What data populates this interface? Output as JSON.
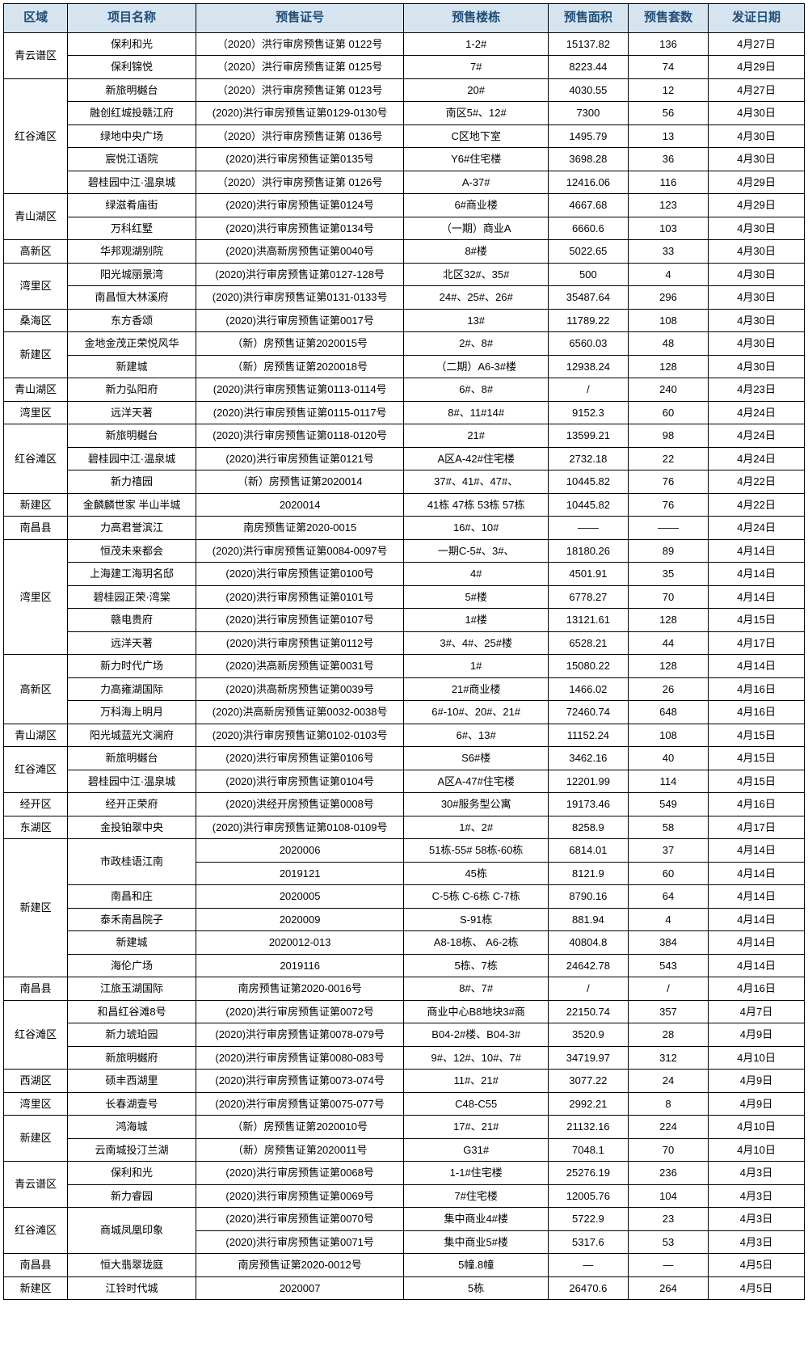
{
  "style": {
    "header_bg": "#d6e4f0",
    "header_fg": "#1f4e79",
    "border_color": "#000000",
    "font_family": "Microsoft YaHei",
    "header_fontsize_pt": 15,
    "body_fontsize_pt": 13
  },
  "columns": [
    "区域",
    "项目名称",
    "预售证号",
    "预售楼栋",
    "预售面积",
    "预售套数",
    "发证日期"
  ],
  "column_widths_pct": [
    8,
    16,
    26,
    18,
    10,
    10,
    12
  ],
  "rows": [
    {
      "region": "青云谱区",
      "project": "保利和光",
      "cert": "（2020）洪行审房预售证第 0122号",
      "building": "1-2#",
      "area": "15137.82",
      "units": "136",
      "date": "4月27日"
    },
    {
      "region": "",
      "project": "保利锦悦",
      "cert": "（2020）洪行审房预售证第 0125号",
      "building": "7#",
      "area": "8223.44",
      "units": "74",
      "date": "4月29日"
    },
    {
      "region": "红谷滩区",
      "project": "新旅明樾台",
      "cert": "（2020）洪行审房预售证第 0123号",
      "building": "20#",
      "area": "4030.55",
      "units": "12",
      "date": "4月27日"
    },
    {
      "region": "",
      "project": "融创红城投赣江府",
      "cert": "(2020)洪行审房预售证第0129-0130号",
      "building": "南区5#、12#",
      "area": "7300",
      "units": "56",
      "date": "4月30日"
    },
    {
      "region": "",
      "project": "绿地中央广场",
      "cert": "（2020）洪行审房预售证第 0136号",
      "building": "C区地下室",
      "area": "1495.79",
      "units": "13",
      "date": "4月30日"
    },
    {
      "region": "",
      "project": "宸悦江语院",
      "cert": "(2020)洪行审房预售证第0135号",
      "building": "Y6#住宅楼",
      "area": "3698.28",
      "units": "36",
      "date": "4月30日"
    },
    {
      "region": "",
      "project": "碧桂园中江·温泉城",
      "cert": "（2020）洪行审房预售证第 0126号",
      "building": "A-37#",
      "area": "12416.06",
      "units": "116",
      "date": "4月29日"
    },
    {
      "region": "青山湖区",
      "project": "绿滋肴庙街",
      "cert": "(2020)洪行审房预售证第0124号",
      "building": "6#商业楼",
      "area": "4667.68",
      "units": "123",
      "date": "4月29日"
    },
    {
      "region": "",
      "project": "万科红墅",
      "cert": "(2020)洪行审房预售证第0134号",
      "building": "（一期）商业A",
      "area": "6660.6",
      "units": "103",
      "date": "4月30日"
    },
    {
      "region": "高新区",
      "project": "华邦观湖别院",
      "cert": "(2020)洪高新房预售证第0040号",
      "building": "8#楼",
      "area": "5022.65",
      "units": "33",
      "date": "4月30日"
    },
    {
      "region": "湾里区",
      "project": "阳光城丽景湾",
      "cert": "(2020)洪行审房预售证第0127-128号",
      "building": "北区32#、35#",
      "area": "500",
      "units": "4",
      "date": "4月30日"
    },
    {
      "region": "",
      "project": "南昌恒大林溪府",
      "cert": "(2020)洪行审房预售证第0131-0133号",
      "building": "24#、25#、26#",
      "area": "35487.64",
      "units": "296",
      "date": "4月30日"
    },
    {
      "region": "桑海区",
      "project": "东方香颂",
      "cert": "(2020)洪行审房预售证第0017号",
      "building": "13#",
      "area": "11789.22",
      "units": "108",
      "date": "4月30日"
    },
    {
      "region": "新建区",
      "project": "金地金茂正荣悦风华",
      "cert": "（新）房预售证第2020015号",
      "building": "2#、8#",
      "area": "6560.03",
      "units": "48",
      "date": "4月30日"
    },
    {
      "region": "",
      "project": "新建城",
      "cert": "（新）房预售证第2020018号",
      "building": "（二期）A6-3#楼",
      "area": "12938.24",
      "units": "128",
      "date": "4月30日"
    },
    {
      "region": "青山湖区",
      "project": "新力弘阳府",
      "cert": "(2020)洪行审房预售证第0113-0114号",
      "building": "6#、8#",
      "area": "/",
      "units": "240",
      "date": "4月23日"
    },
    {
      "region": "湾里区",
      "project": "远洋天著",
      "cert": "(2020)洪行审房预售证第0115-0117号",
      "building": "8#、11#14#",
      "area": "9152.3",
      "units": "60",
      "date": "4月24日"
    },
    {
      "region": "红谷滩区",
      "project": "新旅明樾台",
      "cert": "(2020)洪行审房预售证第0118-0120号",
      "building": "21#",
      "area": "13599.21",
      "units": "98",
      "date": "4月24日"
    },
    {
      "region": "",
      "project": "碧桂园中江·温泉城",
      "cert": "(2020)洪行审房预售证第0121号",
      "building": "A区A-42#住宅楼",
      "area": "2732.18",
      "units": "22",
      "date": "4月24日"
    },
    {
      "region": "",
      "project": "新力禧园",
      "cert": "（新）房预售证第2020014",
      "building": "37#、41#、47#、",
      "area": "10445.82",
      "units": "76",
      "date": "4月22日"
    },
    {
      "region": "新建区",
      "project": "金麟麟世家 半山半城",
      "cert": "2020014",
      "building": "41栋 47栋 53栋 57栋",
      "area": "10445.82",
      "units": "76",
      "date": "4月22日"
    },
    {
      "region": "南昌县",
      "project": "力高君誉滨江",
      "cert": "南房预售证第2020-0015",
      "building": "16#、10#",
      "area": "——",
      "units": "——",
      "date": "4月24日"
    },
    {
      "region": "湾里区",
      "project": "恒茂未来都会",
      "cert": "(2020)洪行审房预售证第0084-0097号",
      "building": "一期C-5#、3#、",
      "area": "18180.26",
      "units": "89",
      "date": "4月14日"
    },
    {
      "region": "",
      "project": "上海建工海玥名邸",
      "cert": "(2020)洪行审房预售证第0100号",
      "building": "4#",
      "area": "4501.91",
      "units": "35",
      "date": "4月14日"
    },
    {
      "region": "",
      "project": "碧桂园正荣·湾棠",
      "cert": "(2020)洪行审房预售证第0101号",
      "building": "5#楼",
      "area": "6778.27",
      "units": "70",
      "date": "4月14日"
    },
    {
      "region": "",
      "project": "赣电贵府",
      "cert": "(2020)洪行审房预售证第0107号",
      "building": "1#楼",
      "area": "13121.61",
      "units": "128",
      "date": "4月15日"
    },
    {
      "region": "",
      "project": "远洋天著",
      "cert": "(2020)洪行审房预售证第0112号",
      "building": "3#、4#、25#楼",
      "area": "6528.21",
      "units": "44",
      "date": "4月17日"
    },
    {
      "region": "高新区",
      "project": "新力时代广场",
      "cert": "(2020)洪高新房预售证第0031号",
      "building": "1#",
      "area": "15080.22",
      "units": "128",
      "date": "4月14日"
    },
    {
      "region": "",
      "project": "力高雍湖国际",
      "cert": "(2020)洪高新房预售证第0039号",
      "building": "21#商业楼",
      "area": "1466.02",
      "units": "26",
      "date": "4月16日"
    },
    {
      "region": "",
      "project": "万科海上明月",
      "cert": "(2020)洪高新房预售证第0032-0038号",
      "building": "6#-10#、20#、21#",
      "area": "72460.74",
      "units": "648",
      "date": "4月16日"
    },
    {
      "region": "青山湖区",
      "project": "阳光城蓝光文澜府",
      "cert": "(2020)洪行审房预售证第0102-0103号",
      "building": "6#、13#",
      "area": "11152.24",
      "units": "108",
      "date": "4月15日"
    },
    {
      "region": "红谷滩区",
      "project": "新旅明樾台",
      "cert": "(2020)洪行审房预售证第0106号",
      "building": "S6#楼",
      "area": "3462.16",
      "units": "40",
      "date": "4月15日"
    },
    {
      "region": "",
      "project": "碧桂园中江·温泉城",
      "cert": "(2020)洪行审房预售证第0104号",
      "building": "A区A-47#住宅楼",
      "area": "12201.99",
      "units": "114",
      "date": "4月15日"
    },
    {
      "region": "经开区",
      "project": "经开正荣府",
      "cert": "(2020)洪经开房预售证第0008号",
      "building": "30#服务型公寓",
      "area": "19173.46",
      "units": "549",
      "date": "4月16日"
    },
    {
      "region": "东湖区",
      "project": "金投铂翠中央",
      "cert": "(2020)洪行审房预售证第0108-0109号",
      "building": "1#、2#",
      "area": "8258.9",
      "units": "58",
      "date": "4月17日"
    },
    {
      "region": "新建区",
      "project": "市政桂语江南",
      "cert": "2020006",
      "building": "51栋-55# 58栋-60栋",
      "area": "6814.01",
      "units": "37",
      "date": "4月14日"
    },
    {
      "region": "",
      "project": "",
      "cert": "2019121",
      "building": "45栋",
      "area": "8121.9",
      "units": "60",
      "date": "4月14日"
    },
    {
      "region": "",
      "project": "南昌和庄",
      "cert": "2020005",
      "building": "C-5栋 C-6栋 C-7栋",
      "area": "8790.16",
      "units": "64",
      "date": "4月14日"
    },
    {
      "region": "",
      "project": "泰禾南昌院子",
      "cert": "2020009",
      "building": "S-91栋",
      "area": "881.94",
      "units": "4",
      "date": "4月14日"
    },
    {
      "region": "",
      "project": "新建城",
      "cert": "2020012-013",
      "building": "A8-18栋、 A6-2栋",
      "area": "40804.8",
      "units": "384",
      "date": "4月14日"
    },
    {
      "region": "",
      "project": "海伦广场",
      "cert": "2019116",
      "building": "5栋、7栋",
      "area": "24642.78",
      "units": "543",
      "date": "4月14日"
    },
    {
      "region": "南昌县",
      "project": "江旅玉湖国际",
      "cert": "南房预售证第2020-0016号",
      "building": "8#、7#",
      "area": "/",
      "units": "/",
      "date": "4月16日"
    },
    {
      "region": "红谷滩区",
      "project": "和昌红谷滩8号",
      "cert": "(2020)洪行审房预售证第0072号",
      "building": "商业中心B8地块3#商",
      "area": "22150.74",
      "units": "357",
      "date": "4月7日"
    },
    {
      "region": "",
      "project": "新力琥珀园",
      "cert": "(2020)洪行审房预售证第0078-079号",
      "building": "B04-2#楼、B04-3#",
      "area": "3520.9",
      "units": "28",
      "date": "4月9日"
    },
    {
      "region": "",
      "project": "新旅明樾府",
      "cert": "(2020)洪行审房预售证第0080-083号",
      "building": "9#、12#、10#、7#",
      "area": "34719.97",
      "units": "312",
      "date": "4月10日"
    },
    {
      "region": "西湖区",
      "project": "硕丰西湖里",
      "cert": "(2020)洪行审房预售证第0073-074号",
      "building": "11#、21#",
      "area": "3077.22",
      "units": "24",
      "date": "4月9日"
    },
    {
      "region": "湾里区",
      "project": "长春湖壹号",
      "cert": "(2020)洪行审房预售证第0075-077号",
      "building": "C48-C55",
      "area": "2992.21",
      "units": "8",
      "date": "4月9日"
    },
    {
      "region": "新建区",
      "project": "鸿海城",
      "cert": "（新）房预售证第2020010号",
      "building": "17#、21#",
      "area": "21132.16",
      "units": "224",
      "date": "4月10日"
    },
    {
      "region": "",
      "project": "云南城投汀兰湖",
      "cert": "（新）房预售证第2020011号",
      "building": "G31#",
      "area": "7048.1",
      "units": "70",
      "date": "4月10日"
    },
    {
      "region": "青云谱区",
      "project": "保利和光",
      "cert": "(2020)洪行审房预售证第0068号",
      "building": "1-1#住宅楼",
      "area": "25276.19",
      "units": "236",
      "date": "4月3日"
    },
    {
      "region": "",
      "project": "新力睿园",
      "cert": "(2020)洪行审房预售证第0069号",
      "building": "7#住宅楼",
      "area": "12005.76",
      "units": "104",
      "date": "4月3日"
    },
    {
      "region": "红谷滩区",
      "project": "商城凤凰印象",
      "cert": "(2020)洪行审房预售证第0070号",
      "building": "集中商业4#楼",
      "area": "5722.9",
      "units": "23",
      "date": "4月3日"
    },
    {
      "region": "",
      "project": "",
      "cert": "(2020)洪行审房预售证第0071号",
      "building": "集中商业5#楼",
      "area": "5317.6",
      "units": "53",
      "date": "4月3日"
    },
    {
      "region": "南昌县",
      "project": "恒大翡翠珑庭",
      "cert": "南房预售证第2020-0012号",
      "building": "5幢.8幢",
      "area": "—",
      "units": "—",
      "date": "4月5日"
    },
    {
      "region": "新建区",
      "project": "江铃时代城",
      "cert": "2020007",
      "building": "5栋",
      "area": "26470.6",
      "units": "264",
      "date": "4月5日"
    }
  ],
  "region_spans": [
    2,
    5,
    2,
    1,
    2,
    1,
    2,
    1,
    1,
    3,
    1,
    1,
    5,
    3,
    1,
    2,
    1,
    1,
    6,
    1,
    3,
    1,
    1,
    2,
    2,
    2,
    1,
    1
  ],
  "project_spans_at": {
    "35": 2,
    "51": 2
  }
}
